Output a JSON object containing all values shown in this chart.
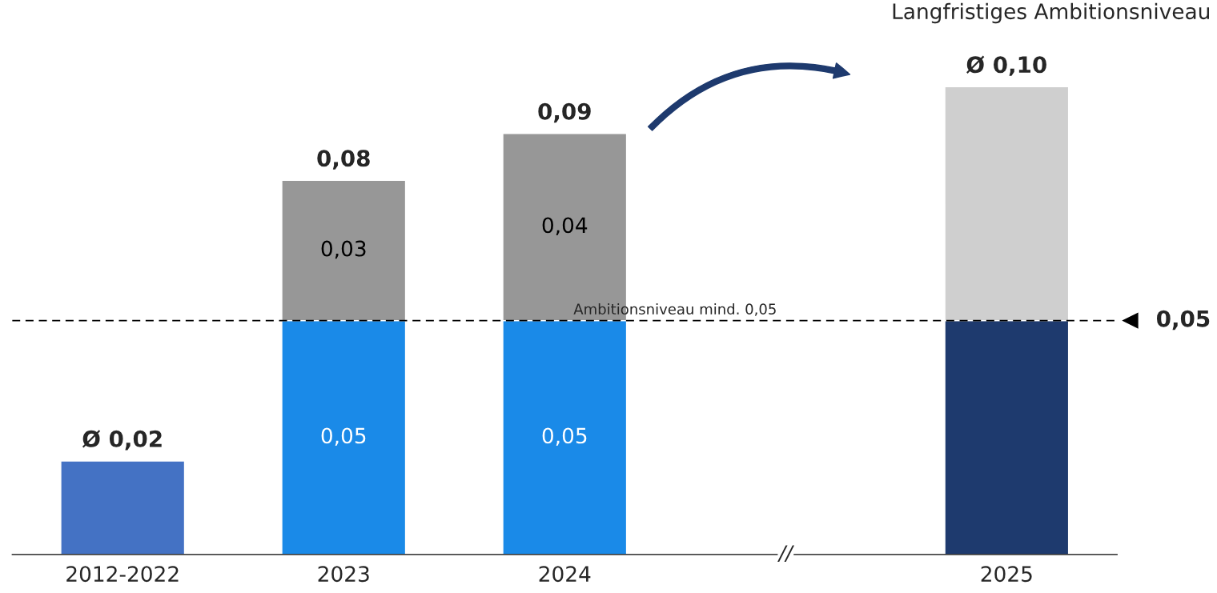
{
  "chart_data": {
    "type": "bar",
    "stacked": true,
    "categories": [
      "2012-2022",
      "2023",
      "2024",
      null,
      "2025"
    ],
    "series": [
      {
        "colors": [
          "#4472c4",
          "#1a8ae8",
          "#1a8ae8",
          null,
          "#1e3a6e"
        ],
        "values": [
          0.02,
          0.05,
          0.05,
          null,
          0.05
        ],
        "value_labels": [
          null,
          "0,05",
          "0,05",
          null,
          null
        ]
      },
      {
        "colors": [
          null,
          "#979797",
          "#979797",
          null,
          "#cfcfcf"
        ],
        "values": [
          null,
          0.03,
          0.04,
          null,
          0.05
        ],
        "value_labels": [
          null,
          "0,03",
          "0,04",
          null,
          null
        ]
      }
    ],
    "totals": [
      "Ø 0,02",
      "0,08",
      "0,09",
      null,
      "Ø 0,10"
    ],
    "ref_lines": [
      {
        "axis": "y",
        "value": 0.05,
        "label": "Ambitionsniveau mind. 0,05",
        "color": "#000000",
        "line_style": "dashed"
      }
    ],
    "annotations": [
      "0,05",
      "Langfristiges Ambitionsniveau",
      "//"
    ],
    "grid": false
  }
}
